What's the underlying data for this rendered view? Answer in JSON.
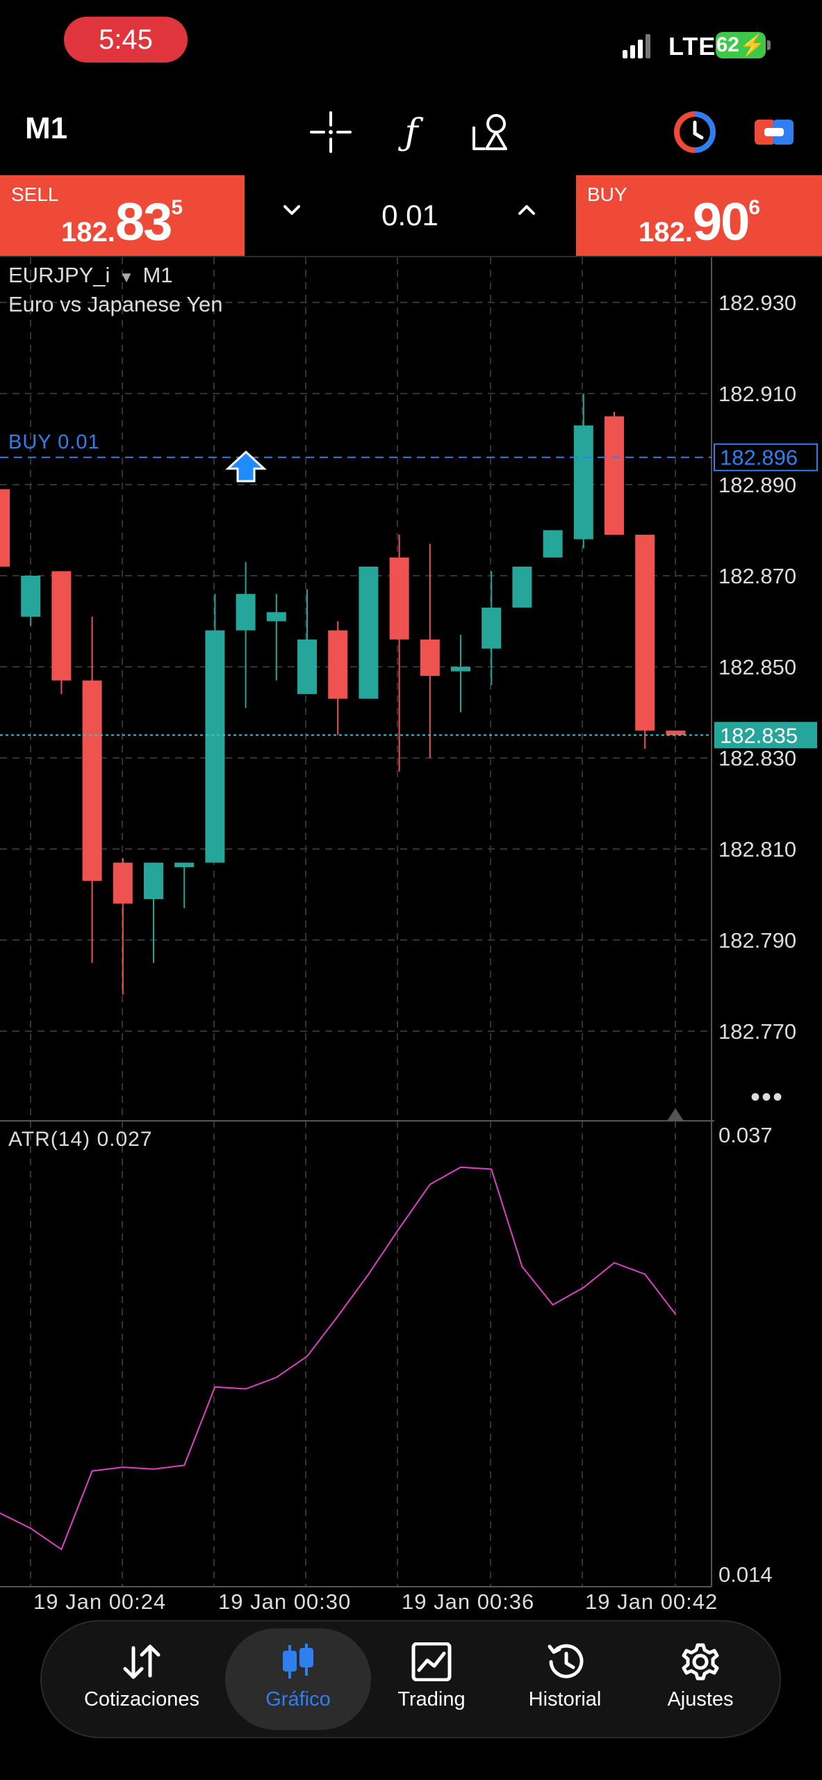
{
  "status_bar": {
    "time": "5:45",
    "network": "LTE",
    "battery": "62"
  },
  "toolbar": {
    "timeframe": "M1"
  },
  "trade_panel": {
    "sell": {
      "label": "SELL",
      "price_small": "182.",
      "price_big": "83",
      "price_sup": "5"
    },
    "buy": {
      "label": "BUY",
      "price_small": "182.",
      "price_big": "90",
      "price_sup": "6"
    },
    "lot": "0.01"
  },
  "chart": {
    "symbol": "EURJPY_i",
    "symbol_timeframe": "M1",
    "description": "Euro vs Japanese Yen",
    "buy_line_label": "BUY 0.01",
    "buy_line_price": "182.896",
    "bid_price": "182.835",
    "price_ticks": [
      "182.930",
      "182.910",
      "182.890",
      "182.870",
      "182.850",
      "182.830",
      "182.810",
      "182.790",
      "182.770"
    ],
    "atr_label": "ATR(14) 0.027",
    "atr_ticks": [
      "0.037",
      "0.014"
    ],
    "time_labels": [
      "19 Jan 00:24",
      "19 Jan 00:30",
      "19 Jan 00:36",
      "19 Jan 00:42"
    ],
    "colors": {
      "bull": "#26a69a",
      "bear": "#ef5350",
      "atr": "#e040c8",
      "buy_line": "#2f7ff0",
      "bid_line": "#2fc9c9"
    }
  },
  "chart_data": {
    "type": "candlestick",
    "symbol": "EURJPY_i",
    "timeframe": "M1",
    "ylim": [
      182.755,
      182.935
    ],
    "candles": [
      {
        "o": 182.889,
        "h": 182.889,
        "l": 182.872,
        "c": 182.872
      },
      {
        "o": 182.861,
        "h": 182.87,
        "l": 182.859,
        "c": 182.87
      },
      {
        "o": 182.871,
        "h": 182.871,
        "l": 182.844,
        "c": 182.847
      },
      {
        "o": 182.847,
        "h": 182.861,
        "l": 182.785,
        "c": 182.803
      },
      {
        "o": 182.807,
        "h": 182.808,
        "l": 182.778,
        "c": 182.798
      },
      {
        "o": 182.799,
        "h": 182.807,
        "l": 182.785,
        "c": 182.807
      },
      {
        "o": 182.806,
        "h": 182.807,
        "l": 182.797,
        "c": 182.807
      },
      {
        "o": 182.807,
        "h": 182.866,
        "l": 182.807,
        "c": 182.858
      },
      {
        "o": 182.858,
        "h": 182.873,
        "l": 182.841,
        "c": 182.866
      },
      {
        "o": 182.86,
        "h": 182.866,
        "l": 182.847,
        "c": 182.862
      },
      {
        "o": 182.844,
        "h": 182.867,
        "l": 182.844,
        "c": 182.856
      },
      {
        "o": 182.858,
        "h": 182.86,
        "l": 182.835,
        "c": 182.843
      },
      {
        "o": 182.843,
        "h": 182.872,
        "l": 182.843,
        "c": 182.872
      },
      {
        "o": 182.874,
        "h": 182.879,
        "l": 182.827,
        "c": 182.856
      },
      {
        "o": 182.856,
        "h": 182.877,
        "l": 182.83,
        "c": 182.848
      },
      {
        "o": 182.849,
        "h": 182.857,
        "l": 182.84,
        "c": 182.85
      },
      {
        "o": 182.854,
        "h": 182.871,
        "l": 182.846,
        "c": 182.863
      },
      {
        "o": 182.863,
        "h": 182.872,
        "l": 182.863,
        "c": 182.872
      },
      {
        "o": 182.874,
        "h": 182.88,
        "l": 182.874,
        "c": 182.88
      },
      {
        "o": 182.878,
        "h": 182.91,
        "l": 182.876,
        "c": 182.903
      },
      {
        "o": 182.905,
        "h": 182.906,
        "l": 182.879,
        "c": 182.879
      },
      {
        "o": 182.879,
        "h": 182.879,
        "l": 182.832,
        "c": 182.836
      },
      {
        "o": 182.836,
        "h": 182.836,
        "l": 182.835,
        "c": 182.835
      }
    ],
    "atr": {
      "name": "ATR(14)",
      "ylim": [
        0.014,
        0.037
      ],
      "values": [
        0.0172,
        0.0164,
        0.0153,
        0.0194,
        0.0196,
        0.0195,
        0.0197,
        0.0238,
        0.0237,
        0.0243,
        0.0254,
        0.0275,
        0.0297,
        0.0321,
        0.0344,
        0.0353,
        0.0352,
        0.0301,
        0.0281,
        0.029,
        0.0303,
        0.0297,
        0.0276
      ]
    }
  },
  "nav": {
    "items": [
      {
        "label": "Cotizaciones"
      },
      {
        "label": "Gráfico"
      },
      {
        "label": "Trading"
      },
      {
        "label": "Historial"
      },
      {
        "label": "Ajustes"
      }
    ]
  }
}
